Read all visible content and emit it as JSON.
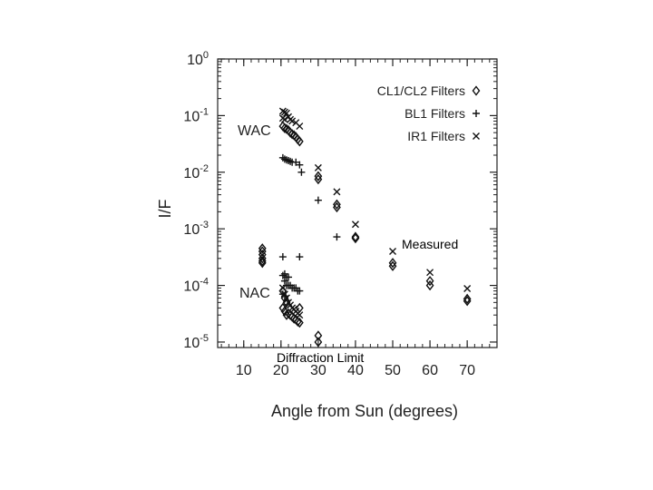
{
  "chart_data": {
    "type": "scatter",
    "xlabel": "Angle from Sun (degrees)",
    "ylabel": "I/F",
    "xlim": [
      3,
      78
    ],
    "ylim": [
      8e-06,
      1
    ],
    "yscale": "log",
    "x_ticks": [
      10,
      20,
      30,
      40,
      50,
      60,
      70
    ],
    "y_ticks": [
      {
        "value": 1e-05,
        "base": "10",
        "exp": "-5"
      },
      {
        "value": 0.0001,
        "base": "10",
        "exp": "-4"
      },
      {
        "value": 0.001,
        "base": "10",
        "exp": "-3"
      },
      {
        "value": 0.01,
        "base": "10",
        "exp": "-2"
      },
      {
        "value": 0.1,
        "base": "10",
        "exp": "-1"
      },
      {
        "value": 1,
        "base": "10",
        "exp": "0"
      }
    ],
    "grid": false,
    "legend_position": "top-right",
    "legend": [
      {
        "label": "CL1/CL2 Filters",
        "marker": "diamond"
      },
      {
        "label": "BL1 Filters",
        "marker": "plus"
      },
      {
        "label": "IR1 Filters",
        "marker": "cross"
      }
    ],
    "annotations": [
      "WAC",
      "NAC"
    ],
    "series": [
      {
        "marker": "diamond",
        "points": [
          [
            15,
            0.00045
          ],
          [
            15,
            0.0004
          ],
          [
            15,
            0.00035
          ],
          [
            15,
            0.0003
          ],
          [
            15,
            0.00027
          ],
          [
            15,
            0.00025
          ],
          [
            20.5,
            0.065
          ],
          [
            21,
            0.06
          ],
          [
            21.5,
            0.058
          ],
          [
            22,
            0.055
          ],
          [
            22.5,
            0.05
          ],
          [
            23,
            0.047
          ],
          [
            23.5,
            0.045
          ],
          [
            24,
            0.042
          ],
          [
            24.5,
            0.038
          ],
          [
            25,
            0.035
          ],
          [
            20.5,
            8e-05
          ],
          [
            21,
            6e-05
          ],
          [
            21.5,
            5e-05
          ],
          [
            20.5,
            4e-05
          ],
          [
            21,
            3.5e-05
          ],
          [
            21.5,
            3e-05
          ],
          [
            22,
            3.2e-05
          ],
          [
            22.5,
            3e-05
          ],
          [
            23,
            2.8e-05
          ],
          [
            23.5,
            2.6e-05
          ],
          [
            24,
            2.5e-05
          ],
          [
            24.5,
            2.3e-05
          ],
          [
            25,
            2.2e-05
          ],
          [
            25,
            4e-05
          ],
          [
            30,
            0.0085
          ],
          [
            30,
            0.0075
          ],
          [
            30,
            1.3e-05
          ],
          [
            30,
            1e-05
          ],
          [
            35,
            0.0027
          ],
          [
            35,
            0.0024
          ],
          [
            40,
            0.00072
          ],
          [
            40,
            0.00068
          ],
          [
            50,
            0.00025
          ],
          [
            50,
            0.00022
          ],
          [
            60,
            0.00012
          ],
          [
            60,
            0.0001
          ],
          [
            70,
            5.8e-05
          ],
          [
            70,
            5.3e-05
          ]
        ]
      },
      {
        "marker": "plus",
        "points": [
          [
            20.5,
            0.018
          ],
          [
            21,
            0.017
          ],
          [
            21.5,
            0.0165
          ],
          [
            22,
            0.016
          ],
          [
            22.5,
            0.0155
          ],
          [
            23,
            0.015
          ],
          [
            24,
            0.015
          ],
          [
            25,
            0.0135
          ],
          [
            25.5,
            0.01
          ],
          [
            20.5,
            0.00032
          ],
          [
            21,
            0.00016
          ],
          [
            20.5,
            0.00015
          ],
          [
            21.5,
            0.00014
          ],
          [
            22,
            0.00014
          ],
          [
            21,
            0.00012
          ],
          [
            21.5,
            0.0001
          ],
          [
            22,
            0.0001
          ],
          [
            22.5,
            0.0001
          ],
          [
            23,
            9e-05
          ],
          [
            23.5,
            9e-05
          ],
          [
            24,
            9e-05
          ],
          [
            24.5,
            8e-05
          ],
          [
            25,
            8e-05
          ],
          [
            20.5,
            7e-05
          ],
          [
            21,
            6.5e-05
          ],
          [
            25,
            0.00032
          ],
          [
            30,
            0.0032
          ],
          [
            35,
            0.00072
          ]
        ]
      },
      {
        "marker": "cross",
        "points": [
          [
            20.5,
            0.12
          ],
          [
            21,
            0.115
          ],
          [
            21.5,
            0.11
          ],
          [
            22,
            0.095
          ],
          [
            22.5,
            0.085
          ],
          [
            23,
            0.08
          ],
          [
            24,
            0.075
          ],
          [
            25,
            0.065
          ],
          [
            20.5,
            0.09
          ],
          [
            21,
            0.085
          ],
          [
            20.5,
            9e-05
          ],
          [
            21,
            7e-05
          ],
          [
            21.5,
            6e-05
          ],
          [
            22,
            5e-05
          ],
          [
            22.5,
            4.5e-05
          ],
          [
            23,
            4e-05
          ],
          [
            23.5,
            3.8e-05
          ],
          [
            24,
            3.5e-05
          ],
          [
            24.5,
            3.2e-05
          ],
          [
            25,
            3e-05
          ],
          [
            30,
            0.012
          ],
          [
            35,
            0.0045
          ],
          [
            40,
            0.0012
          ],
          [
            50,
            0.0004
          ],
          [
            60,
            0.00017
          ],
          [
            70,
            8.8e-05
          ]
        ]
      }
    ]
  },
  "overlay": {
    "measured": "Measured",
    "diffraction_limit": "Diffraction Limit"
  }
}
